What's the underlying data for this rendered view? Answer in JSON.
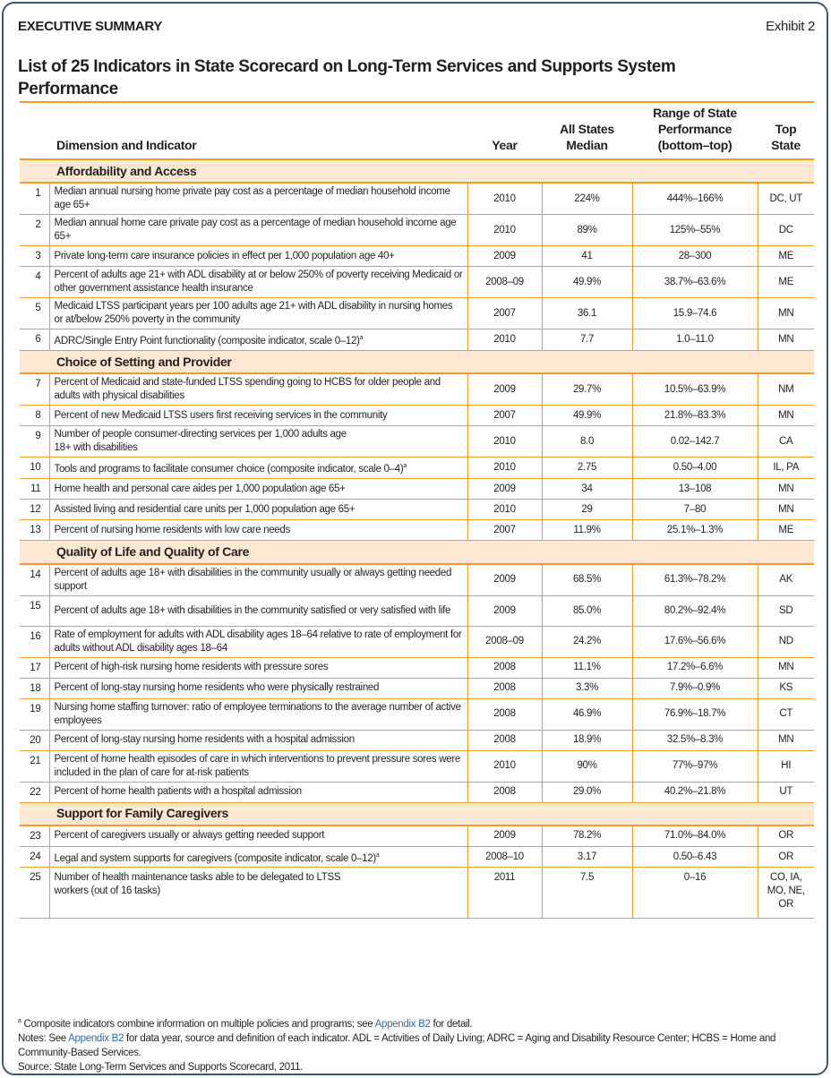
{
  "header": {
    "section": "EXECUTIVE SUMMARY",
    "exhibit": "Exhibit 2"
  },
  "title": "List of 25 Indicators in State Scorecard on Long-Term Services and Supports System Performance",
  "columns": {
    "indicator": "Dimension and Indicator",
    "year": "Year",
    "median": "All States Median",
    "range": "Range of State Performance (bottom–top)",
    "top": "Top State"
  },
  "sections": [
    {
      "name": "Affordability and Access",
      "rows": [
        {
          "n": "1",
          "text": "Median annual nursing home private pay cost as a percentage of median household income age 65+",
          "year": "2010",
          "median": "224%",
          "range": "444%–166%",
          "top": "DC, UT"
        },
        {
          "n": "2",
          "text": "Median annual home care private pay cost as a percentage of median household income age 65+",
          "year": "2010",
          "median": "89%",
          "range": "125%–55%",
          "top": "DC"
        },
        {
          "n": "3",
          "text": "Private long-term care insurance policies in effect per 1,000 population age 40+",
          "year": "2009",
          "median": "41",
          "range": "28–300",
          "top": "ME"
        },
        {
          "n": "4",
          "text": "Percent of adults age 21+ with ADL disability at or below 250% of poverty receiving Medicaid or other government assistance health insurance",
          "year": "2008–09",
          "median": "49.9%",
          "range": "38.7%–63.6%",
          "top": "ME"
        },
        {
          "n": "5",
          "text": "Medicaid LTSS participant years per 100 adults age 21+ with ADL disability in nursing homes or at/below 250% poverty in the community",
          "year": "2007",
          "median": "36.1",
          "range": "15.9–74.6",
          "top": "MN"
        },
        {
          "n": "6",
          "text": "ADRC/Single Entry Point functionality (composite indicator, scale 0–12)",
          "sup": "a",
          "year": "2010",
          "median": "7.7",
          "range": "1.0–11.0",
          "top": "MN"
        }
      ]
    },
    {
      "name": "Choice of Setting and Provider",
      "rows": [
        {
          "n": "7",
          "text": "Percent of Medicaid and state-funded LTSS spending going to HCBS for older people and adults with physical disabilities",
          "year": "2009",
          "median": "29.7%",
          "range": "10.5%–63.9%",
          "top": "NM"
        },
        {
          "n": "8",
          "text": "Percent of new Medicaid LTSS users first receiving services in the community",
          "year": "2007",
          "median": "49.9%",
          "range": "21.8%–83.3%",
          "top": "MN"
        },
        {
          "n": "9",
          "text": "Number of people consumer-directing services per 1,000 adults age 18+ with disabilities",
          "year": "2010",
          "median": "8.0",
          "range": "0.02–142.7",
          "top": "CA"
        },
        {
          "n": "10",
          "text": "Tools and programs to facilitate consumer choice (composite indicator, scale 0–4)",
          "sup": "a",
          "year": "2010",
          "median": "2.75",
          "range": "0.50–4.00",
          "top": "IL, PA"
        },
        {
          "n": "11",
          "text": "Home health and personal care aides per 1,000 population age 65+",
          "year": "2009",
          "median": "34",
          "range": "13–108",
          "top": "MN"
        },
        {
          "n": "12",
          "text": "Assisted living and residential care units per 1,000 population age 65+",
          "year": "2010",
          "median": "29",
          "range": "7–80",
          "top": "MN"
        },
        {
          "n": "13",
          "text": "Percent of nursing home residents with low care needs",
          "year": "2007",
          "median": "11.9%",
          "range": "25.1%–1.3%",
          "top": "ME"
        }
      ]
    },
    {
      "name": "Quality of Life and Quality of Care",
      "rows": [
        {
          "n": "14",
          "text": "Percent of adults age 18+ with disabilities in the community usually or always getting needed support",
          "year": "2009",
          "median": "68.5%",
          "range": "61.3%–78.2%",
          "top": "AK"
        },
        {
          "n": "15",
          "text": "Percent of adults age 18+ with disabilities in the community satisfied or very satisfied with life",
          "year": "2009",
          "median": "85.0%",
          "range": "80.2%–92.4%",
          "top": "SD"
        },
        {
          "n": "16",
          "text": "Rate of employment for adults with ADL disability ages 18–64 relative to rate of employment for adults without ADL disability ages 18–64",
          "year": "2008–09",
          "median": "24.2%",
          "range": "17.6%–56.6%",
          "top": "ND"
        },
        {
          "n": "17",
          "text": "Percent of high-risk nursing home residents with pressure sores",
          "year": "2008",
          "median": "11.1%",
          "range": "17.2%–6.6%",
          "top": "MN"
        },
        {
          "n": "18",
          "text": "Percent of long-stay nursing home residents who were physically restrained",
          "year": "2008",
          "median": "3.3%",
          "range": "7.9%–0.9%",
          "top": "KS"
        },
        {
          "n": "19",
          "text": "Nursing home staffing turnover: ratio of employee terminations to the average number of active employees",
          "year": "2008",
          "median": "46.9%",
          "range": "76.9%–18.7%",
          "top": "CT"
        },
        {
          "n": "20",
          "text": "Percent of long-stay nursing home residents with a hospital admission",
          "year": "2008",
          "median": "18.9%",
          "range": "32.5%–8.3%",
          "top": "MN"
        },
        {
          "n": "21",
          "text": "Percent of home health episodes of care in which interventions to prevent pressure sores were included in the plan of care for at-risk patients",
          "year": "2010",
          "median": "90%",
          "range": "77%–97%",
          "top": "HI"
        },
        {
          "n": "22",
          "text": "Percent of home health patients with a hospital admission",
          "year": "2008",
          "median": "29.0%",
          "range": "40.2%–21.8%",
          "top": "UT"
        }
      ]
    },
    {
      "name": "Support for Family Caregivers",
      "rows": [
        {
          "n": "23",
          "text": "Percent of caregivers usually or always getting needed support",
          "year": "2009",
          "median": "78.2%",
          "range": "71.0%–84.0%",
          "top": "OR"
        },
        {
          "n": "24",
          "text": "Legal and system supports for caregivers (composite indicator, scale 0–12)",
          "sup": "a",
          "year": "2008–10",
          "median": "3.17",
          "range": "0.50–6.43",
          "top": "OR"
        },
        {
          "n": "25",
          "text": "Number of health maintenance tasks able to be delegated to LTSS workers (out of 16 tasks)",
          "year": "2011",
          "median": "7.5",
          "range": "0–16",
          "top": "CO, IA, MO, NE, OR"
        }
      ]
    }
  ],
  "notes": {
    "footnote_mark": "a",
    "footnote_pre": "Composite indicators combine information on multiple policies and programs; see ",
    "link": "Appendix B2",
    "footnote_post": " for detail.",
    "notes_pre": "Notes: See ",
    "notes_post": " for data year, source and definition of each indicator. ADL = Activities of Daily Living; ADRC = Aging and Disability Resource Center; HCBS = Home and Community-Based Services.",
    "source": "Source: State Long-Term Services and Supports Scorecard, 2011."
  }
}
